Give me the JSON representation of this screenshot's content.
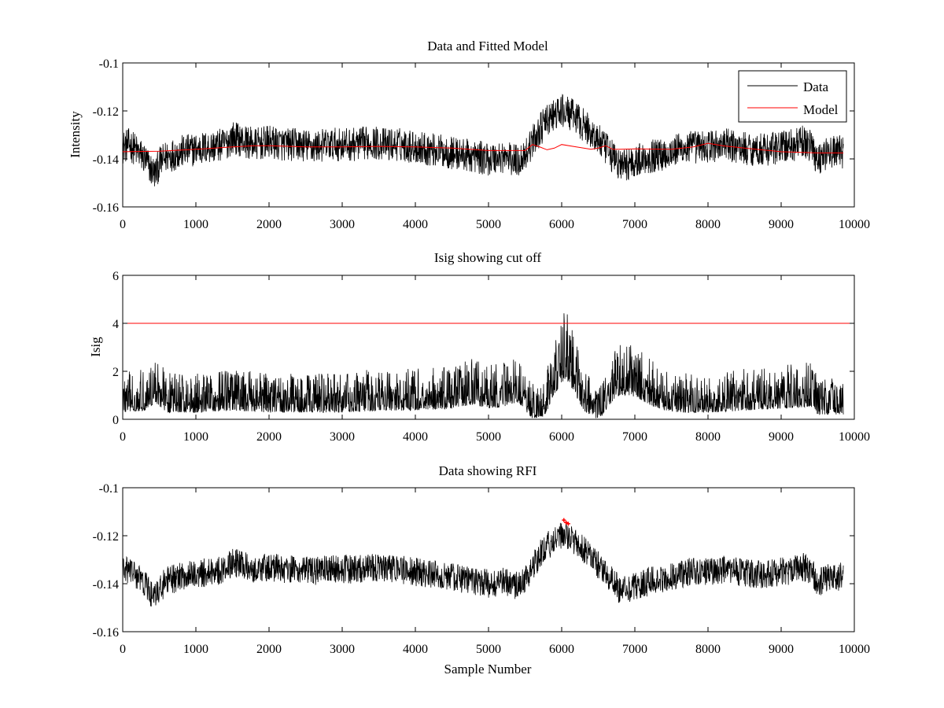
{
  "colors": {
    "data": "#000000",
    "model": "#ff0000",
    "rfi": "#ff0000",
    "axes": "#000000",
    "background": "#ffffff"
  },
  "chart_data": [
    {
      "type": "line",
      "title": "Data and Fitted Model",
      "xlabel": "",
      "ylabel": "Intensity",
      "xlim": [
        0,
        10000
      ],
      "ylim": [
        -0.16,
        -0.1
      ],
      "xticks": [
        0,
        1000,
        2000,
        3000,
        4000,
        5000,
        6000,
        7000,
        8000,
        9000,
        10000
      ],
      "xtick_labels": [
        "0",
        "1000",
        "2000",
        "3000",
        "4000",
        "5000",
        "6000",
        "7000",
        "8000",
        "9000",
        "10000"
      ],
      "yticks": [
        -0.16,
        -0.14,
        -0.12,
        -0.1
      ],
      "ytick_labels": [
        "-0.16",
        "-0.14",
        "-0.12",
        "-0.1"
      ],
      "legend": {
        "location": "top-right",
        "entries": [
          "Data",
          "Model"
        ]
      },
      "series": [
        {
          "name": "Data",
          "kind": "noisy-trace",
          "x": [
            0,
            100,
            200,
            300,
            400,
            450,
            500,
            600,
            700,
            800,
            1000,
            1200,
            1400,
            1500,
            1600,
            1800,
            2000,
            2200,
            2400,
            2600,
            2800,
            3000,
            3200,
            3400,
            3600,
            3800,
            4000,
            4200,
            4400,
            4600,
            4800,
            5000,
            5200,
            5400,
            5500,
            5600,
            5700,
            5800,
            5900,
            6000,
            6100,
            6200,
            6300,
            6400,
            6500,
            6600,
            6700,
            6800,
            6900,
            7000,
            7200,
            7400,
            7600,
            7800,
            8000,
            8200,
            8400,
            8600,
            8800,
            9000,
            9200,
            9300,
            9400,
            9450,
            9500,
            9600,
            9700,
            9850
          ],
          "center": [
            -0.135,
            -0.134,
            -0.137,
            -0.14,
            -0.145,
            -0.146,
            -0.142,
            -0.139,
            -0.138,
            -0.137,
            -0.136,
            -0.135,
            -0.134,
            -0.131,
            -0.132,
            -0.134,
            -0.133,
            -0.134,
            -0.134,
            -0.135,
            -0.134,
            -0.134,
            -0.134,
            -0.133,
            -0.134,
            -0.134,
            -0.135,
            -0.136,
            -0.137,
            -0.138,
            -0.139,
            -0.14,
            -0.139,
            -0.141,
            -0.138,
            -0.133,
            -0.128,
            -0.124,
            -0.122,
            -0.12,
            -0.121,
            -0.123,
            -0.126,
            -0.129,
            -0.132,
            -0.136,
            -0.139,
            -0.143,
            -0.142,
            -0.141,
            -0.139,
            -0.138,
            -0.136,
            -0.135,
            -0.135,
            -0.134,
            -0.135,
            -0.136,
            -0.136,
            -0.135,
            -0.134,
            -0.133,
            -0.134,
            -0.137,
            -0.14,
            -0.138,
            -0.137,
            -0.137
          ],
          "noise_amplitude": 0.007,
          "n_samples": 9850
        },
        {
          "name": "Model",
          "kind": "line",
          "x": [
            0,
            500,
            1000,
            1500,
            1800,
            2000,
            2500,
            3000,
            3500,
            4000,
            4500,
            5000,
            5500,
            5600,
            5700,
            5800,
            5900,
            6000,
            6200,
            6400,
            6500,
            6600,
            6700,
            6800,
            7000,
            7500,
            7800,
            8000,
            8200,
            8500,
            9000,
            9500,
            9850
          ],
          "y": [
            -0.137,
            -0.1368,
            -0.136,
            -0.135,
            -0.1345,
            -0.1345,
            -0.135,
            -0.135,
            -0.1348,
            -0.135,
            -0.1355,
            -0.1365,
            -0.1365,
            -0.134,
            -0.135,
            -0.1362,
            -0.1355,
            -0.134,
            -0.135,
            -0.136,
            -0.1355,
            -0.1345,
            -0.136,
            -0.136,
            -0.1358,
            -0.136,
            -0.135,
            -0.1335,
            -0.1345,
            -0.1355,
            -0.137,
            -0.1375,
            -0.1375
          ]
        }
      ]
    },
    {
      "type": "line",
      "title": "Isig showing cut off",
      "xlabel": "",
      "ylabel": "Isig",
      "xlim": [
        0,
        10000
      ],
      "ylim": [
        0,
        6
      ],
      "xticks": [
        0,
        1000,
        2000,
        3000,
        4000,
        5000,
        6000,
        7000,
        8000,
        9000,
        10000
      ],
      "xtick_labels": [
        "0",
        "1000",
        "2000",
        "3000",
        "4000",
        "5000",
        "6000",
        "7000",
        "8000",
        "9000",
        "10000"
      ],
      "yticks": [
        0,
        2,
        4,
        6
      ],
      "ytick_labels": [
        "0",
        "2",
        "4",
        "6"
      ],
      "series": [
        {
          "name": "Isig",
          "kind": "noisy-trace",
          "x": [
            0,
            300,
            450,
            600,
            1000,
            1500,
            2000,
            2500,
            3000,
            3500,
            4000,
            4500,
            4800,
            5000,
            5200,
            5400,
            5500,
            5600,
            5700,
            5800,
            5900,
            6000,
            6050,
            6100,
            6200,
            6300,
            6500,
            6700,
            6800,
            7000,
            7200,
            7400,
            7600,
            8000,
            8500,
            9000,
            9400,
            9500,
            9850
          ],
          "center": [
            0.7,
            0.8,
            1.2,
            0.7,
            0.7,
            0.8,
            0.7,
            0.7,
            0.7,
            0.8,
            0.8,
            0.9,
            1.1,
            0.9,
            1.0,
            1.2,
            0.8,
            0.4,
            0.2,
            0.8,
            1.6,
            2.2,
            2.4,
            2.2,
            1.5,
            0.8,
            0.3,
            1.3,
            1.6,
            1.5,
            1.1,
            0.8,
            0.7,
            0.7,
            0.8,
            0.9,
            1.0,
            0.6,
            0.6
          ],
          "noise_amplitude": 0.9,
          "n_samples": 9850
        },
        {
          "name": "Cut off",
          "kind": "line",
          "x": [
            0,
            10000
          ],
          "y": [
            4,
            4
          ]
        }
      ]
    },
    {
      "type": "line",
      "title": "Data showing RFI",
      "xlabel": "Sample Number",
      "ylabel": "",
      "xlim": [
        0,
        10000
      ],
      "ylim": [
        -0.16,
        -0.1
      ],
      "xticks": [
        0,
        1000,
        2000,
        3000,
        4000,
        5000,
        6000,
        7000,
        8000,
        9000,
        10000
      ],
      "xtick_labels": [
        "0",
        "1000",
        "2000",
        "3000",
        "4000",
        "5000",
        "6000",
        "7000",
        "8000",
        "9000",
        "10000"
      ],
      "yticks": [
        -0.16,
        -0.14,
        -0.12,
        -0.1
      ],
      "ytick_labels": [
        "-0.16",
        "-0.14",
        "-0.12",
        "-0.1"
      ],
      "series": [
        {
          "name": "Data",
          "kind": "noisy-trace",
          "x": [
            0,
            100,
            200,
            300,
            400,
            450,
            500,
            600,
            700,
            800,
            1000,
            1200,
            1400,
            1500,
            1600,
            1800,
            2000,
            2200,
            2400,
            2600,
            2800,
            3000,
            3200,
            3400,
            3600,
            3800,
            4000,
            4200,
            4400,
            4600,
            4800,
            5000,
            5200,
            5400,
            5500,
            5600,
            5700,
            5800,
            5900,
            6000,
            6100,
            6200,
            6300,
            6400,
            6500,
            6600,
            6700,
            6800,
            6900,
            7000,
            7200,
            7400,
            7600,
            7800,
            8000,
            8200,
            8400,
            8600,
            8800,
            9000,
            9200,
            9300,
            9400,
            9450,
            9500,
            9600,
            9700,
            9850
          ],
          "center": [
            -0.135,
            -0.134,
            -0.137,
            -0.14,
            -0.145,
            -0.146,
            -0.142,
            -0.139,
            -0.138,
            -0.137,
            -0.136,
            -0.135,
            -0.134,
            -0.131,
            -0.132,
            -0.134,
            -0.133,
            -0.134,
            -0.134,
            -0.135,
            -0.134,
            -0.134,
            -0.134,
            -0.133,
            -0.134,
            -0.134,
            -0.135,
            -0.136,
            -0.137,
            -0.138,
            -0.139,
            -0.14,
            -0.139,
            -0.141,
            -0.138,
            -0.133,
            -0.128,
            -0.124,
            -0.122,
            -0.12,
            -0.121,
            -0.123,
            -0.126,
            -0.129,
            -0.132,
            -0.136,
            -0.139,
            -0.143,
            -0.142,
            -0.141,
            -0.139,
            -0.138,
            -0.136,
            -0.135,
            -0.135,
            -0.134,
            -0.135,
            -0.136,
            -0.136,
            -0.135,
            -0.134,
            -0.133,
            -0.134,
            -0.137,
            -0.14,
            -0.138,
            -0.137,
            -0.137
          ],
          "noise_amplitude": 0.006,
          "n_samples": 9850
        },
        {
          "name": "RFI",
          "kind": "markers",
          "x": [
            6030,
            6060,
            6090
          ],
          "y": [
            -0.1135,
            -0.1145,
            -0.115
          ]
        }
      ]
    }
  ]
}
